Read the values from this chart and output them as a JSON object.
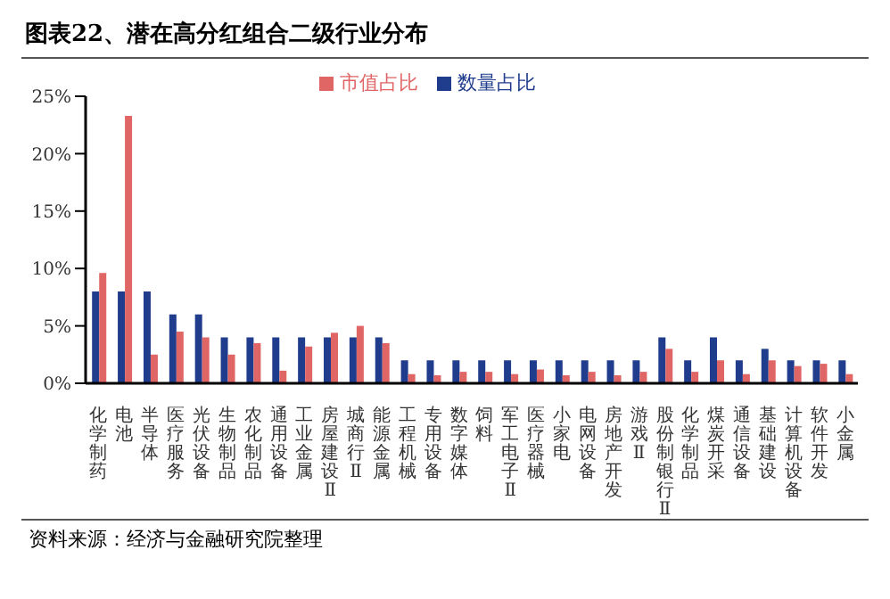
{
  "chart_data": {
    "type": "bar",
    "title": "图表22、潜在高分红组合二级行业分布",
    "categories": [
      "化学制药",
      "电池",
      "半导体",
      "医疗服务",
      "光伏设备",
      "生物制品",
      "农化制品",
      "通用设备",
      "工业金属",
      "房屋建设Ⅱ",
      "城商行Ⅱ",
      "能源金属",
      "工程机械",
      "专用设备",
      "数字媒体",
      "饲料",
      "军工电子Ⅱ",
      "医疗器械",
      "小家电",
      "电网设备",
      "房地产开发",
      "游戏Ⅱ",
      "股份制银行Ⅱ",
      "化学制品",
      "煤炭开采",
      "通信设备",
      "基础建设",
      "计算机设备",
      "软件开发",
      "小金属"
    ],
    "series": [
      {
        "name": "数量占比",
        "color": "#1f3d8c",
        "values": [
          8,
          8,
          8,
          6,
          6,
          4,
          4,
          4,
          4,
          4,
          4,
          4,
          2,
          2,
          2,
          2,
          2,
          2,
          2,
          2,
          2,
          2,
          4,
          2,
          4,
          2,
          3,
          2,
          2,
          2
        ]
      },
      {
        "name": "市值占比",
        "color": "#e06666",
        "values": [
          9.6,
          23.3,
          2.5,
          4.5,
          4,
          2.5,
          3.5,
          1.1,
          3.2,
          4.4,
          5,
          3.5,
          0.8,
          0.7,
          1,
          1,
          0.8,
          1.2,
          0.7,
          1,
          0.7,
          1,
          3,
          1,
          2,
          0.8,
          2,
          1.5,
          1.7,
          0.8
        ]
      }
    ],
    "ylim": [
      0,
      25
    ],
    "yticks": [
      {
        "value": 0,
        "label": "0%"
      },
      {
        "value": 5,
        "label": "5%"
      },
      {
        "value": 10,
        "label": "10%"
      },
      {
        "value": 15,
        "label": "15%"
      },
      {
        "value": 20,
        "label": "20%"
      },
      {
        "value": 25,
        "label": "25%"
      }
    ],
    "grid": false,
    "legend": "top",
    "annotations": [
      "资料来源：经济与金融研究院整理"
    ]
  }
}
